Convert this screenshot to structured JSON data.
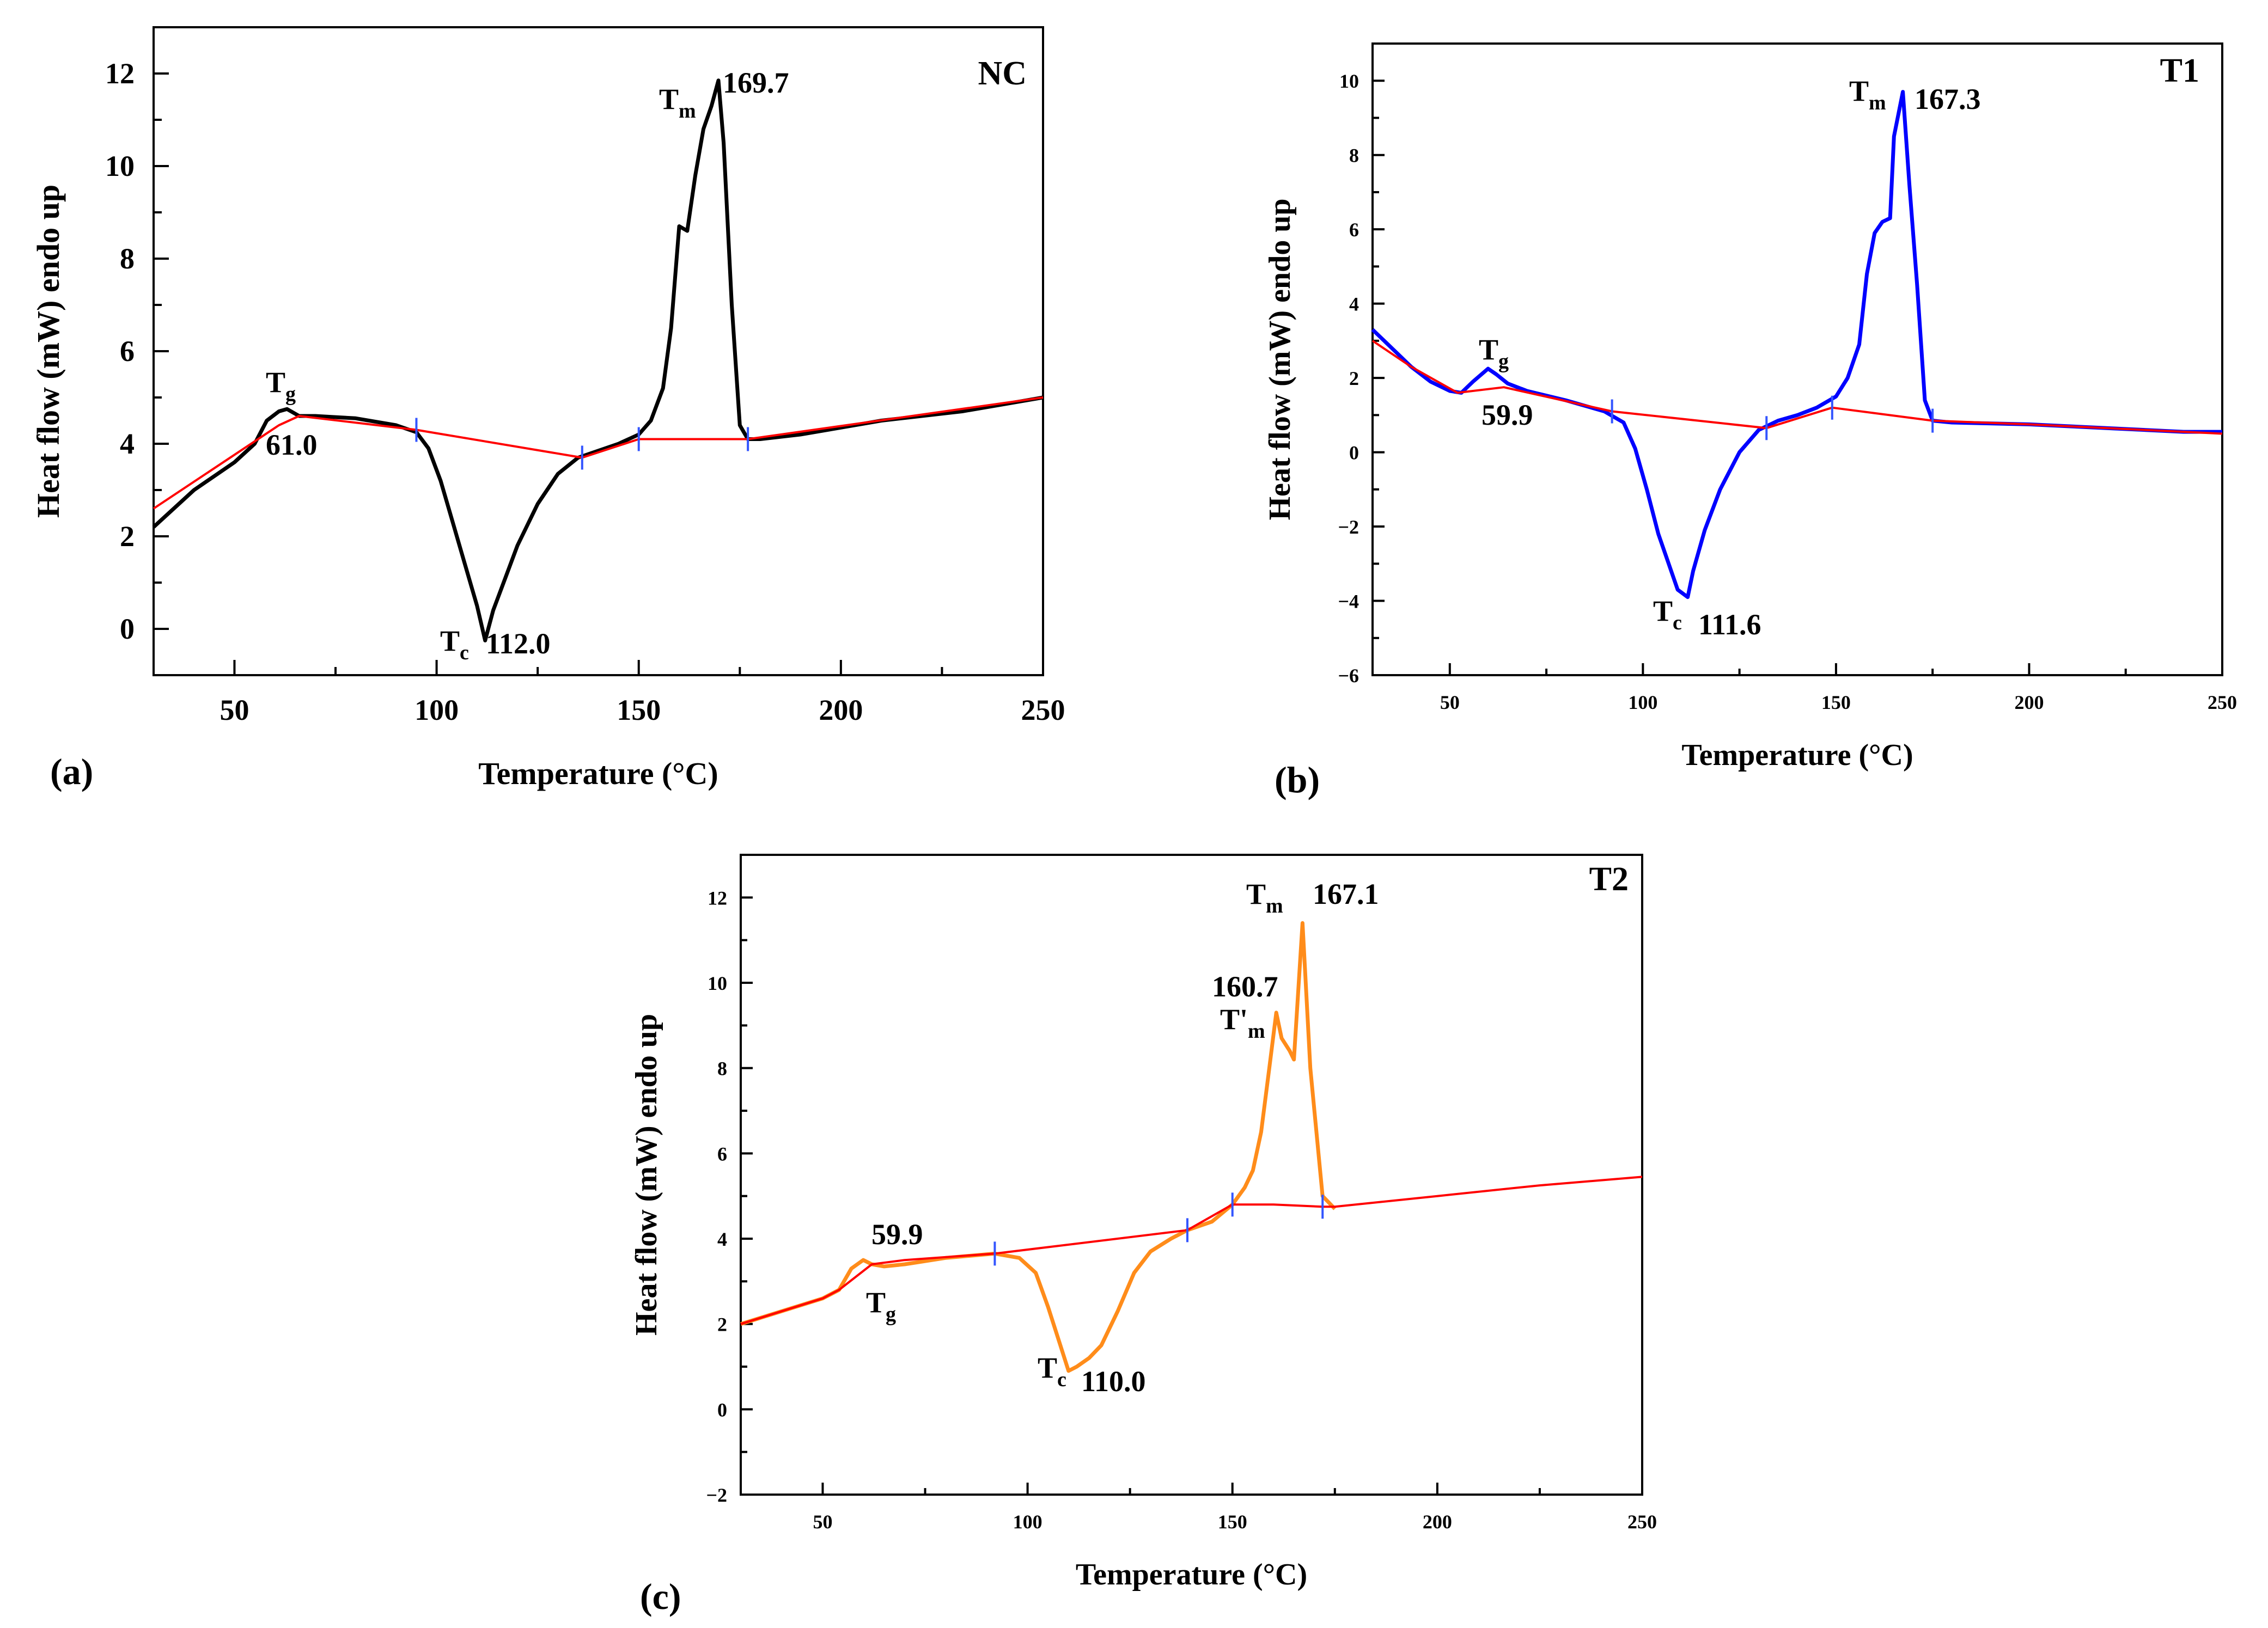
{
  "chart_data": [
    {
      "panel": "(a)",
      "type": "line",
      "title": "NC",
      "xlabel": "Temperature (°C)",
      "ylabel": "Heat flow (mW) endo up",
      "xlim": [
        30,
        250
      ],
      "ylim": [
        -1,
        13
      ],
      "xticks": [
        50,
        100,
        150,
        200,
        250
      ],
      "yticks": [
        0,
        2,
        4,
        6,
        8,
        10,
        12
      ],
      "series": [
        {
          "name": "NC",
          "color": "#000000",
          "x": [
            30,
            40,
            50,
            55,
            58,
            61,
            63,
            66,
            70,
            80,
            90,
            95,
            98,
            101,
            104,
            107,
            110,
            112,
            114,
            117,
            120,
            125,
            130,
            135,
            140,
            145,
            150,
            153,
            156,
            158,
            160,
            162,
            164,
            166,
            168,
            169.7,
            171,
            173,
            175,
            177,
            180,
            190,
            200,
            210,
            220,
            230,
            240,
            250
          ],
          "y": [
            2.2,
            3.0,
            3.6,
            4.0,
            4.5,
            4.7,
            4.75,
            4.6,
            4.6,
            4.55,
            4.4,
            4.25,
            3.9,
            3.2,
            2.3,
            1.4,
            0.5,
            -0.25,
            0.4,
            1.1,
            1.8,
            2.7,
            3.35,
            3.7,
            3.85,
            4.0,
            4.2,
            4.5,
            5.2,
            6.5,
            8.7,
            8.6,
            9.8,
            10.8,
            11.3,
            11.85,
            10.5,
            7.0,
            4.4,
            4.1,
            4.1,
            4.2,
            4.35,
            4.5,
            4.6,
            4.7,
            4.85,
            5.0
          ]
        },
        {
          "name": "baseline",
          "color": "#ff0000",
          "x": [
            30,
            61,
            66,
            95,
            136,
            150,
            177,
            250
          ],
          "y": [
            2.6,
            4.4,
            4.6,
            4.3,
            3.7,
            4.1,
            4.1,
            5.0
          ]
        }
      ],
      "tick_marks_x": [
        95,
        136,
        150,
        177
      ],
      "annotations": [
        {
          "label": "Tg",
          "value": "61.0"
        },
        {
          "label": "Tc",
          "value": "112.0"
        },
        {
          "label": "Tm",
          "value": "169.7"
        }
      ]
    },
    {
      "panel": "(b)",
      "type": "line",
      "title": "T1",
      "xlabel": "Temperature (°C)",
      "ylabel": "Heat flow (mW) endo up",
      "xlim": [
        30,
        250
      ],
      "ylim": [
        -6,
        11
      ],
      "xticks": [
        50,
        100,
        150,
        200,
        250
      ],
      "yticks": [
        -6,
        -4,
        -2,
        0,
        2,
        4,
        6,
        8,
        10
      ],
      "series": [
        {
          "name": "T1",
          "color": "#0000ff",
          "x": [
            30,
            35,
            40,
            45,
            50,
            53,
            56,
            59.9,
            62,
            65,
            70,
            80,
            90,
            95,
            98,
            101,
            104,
            107,
            109,
            111.6,
            113,
            116,
            120,
            125,
            130,
            135,
            140,
            145,
            150,
            153,
            156,
            158,
            160,
            162,
            164,
            165,
            167.3,
            169,
            171,
            173,
            175,
            180,
            200,
            220,
            240,
            250
          ],
          "y": [
            3.3,
            2.8,
            2.3,
            1.9,
            1.65,
            1.6,
            1.9,
            2.25,
            2.1,
            1.85,
            1.65,
            1.4,
            1.1,
            0.8,
            0.1,
            -1.0,
            -2.2,
            -3.1,
            -3.7,
            -3.9,
            -3.2,
            -2.1,
            -1.0,
            0.0,
            0.6,
            0.85,
            1.0,
            1.2,
            1.5,
            2.0,
            2.9,
            4.8,
            5.9,
            6.2,
            6.3,
            8.5,
            9.7,
            7.2,
            4.5,
            1.4,
            0.85,
            0.8,
            0.75,
            0.65,
            0.55,
            0.55
          ]
        },
        {
          "name": "baseline",
          "color": "#ff0000",
          "x": [
            30,
            40,
            52,
            64,
            92,
            132,
            149,
            175,
            200,
            250
          ],
          "y": [
            3.0,
            2.3,
            1.6,
            1.75,
            1.1,
            0.65,
            1.2,
            0.85,
            0.75,
            0.5
          ]
        }
      ],
      "tick_marks_x": [
        92,
        132,
        149,
        175
      ],
      "annotations": [
        {
          "label": "Tg",
          "value": "59.9"
        },
        {
          "label": "Tc",
          "value": "111.6"
        },
        {
          "label": "Tm",
          "value": "167.3"
        }
      ]
    },
    {
      "panel": "(c)",
      "type": "line",
      "title": "T2",
      "xlabel": "Temperature (°C)",
      "ylabel": "Heat flow (mW) endo up",
      "xlim": [
        30,
        250
      ],
      "ylim": [
        -2,
        13
      ],
      "xticks": [
        50,
        100,
        150,
        200,
        250
      ],
      "yticks": [
        -2,
        0,
        2,
        4,
        6,
        8,
        10,
        12
      ],
      "series": [
        {
          "name": "T2",
          "color": "#ff8c1a",
          "x": [
            30,
            40,
            50,
            54,
            57,
            59.9,
            62,
            65,
            70,
            80,
            92,
            98,
            102,
            105,
            108,
            110,
            112,
            115,
            118,
            122,
            126,
            130,
            135,
            139,
            145,
            150,
            153,
            155,
            157,
            159,
            160.7,
            162,
            164,
            165,
            167.1,
            169,
            170,
            172,
            175
          ],
          "y": [
            2.0,
            2.3,
            2.6,
            2.8,
            3.3,
            3.5,
            3.4,
            3.35,
            3.4,
            3.55,
            3.65,
            3.55,
            3.2,
            2.4,
            1.5,
            0.9,
            1.0,
            1.2,
            1.5,
            2.3,
            3.2,
            3.7,
            4.0,
            4.2,
            4.4,
            4.8,
            5.2,
            5.6,
            6.5,
            8.0,
            9.3,
            8.7,
            8.4,
            8.2,
            11.4,
            8.0,
            7.0,
            5.0,
            4.7
          ]
        },
        {
          "name": "baseline",
          "color": "#ff0000",
          "x": [
            30,
            40,
            50,
            54,
            62,
            70,
            92,
            139,
            150,
            160,
            172,
            175,
            200,
            225,
            250
          ],
          "y": [
            2.0,
            2.3,
            2.6,
            2.8,
            3.4,
            3.5,
            3.65,
            4.2,
            4.8,
            4.8,
            4.75,
            4.75,
            5.0,
            5.25,
            5.45
          ]
        }
      ],
      "tick_marks_x": [
        92,
        139,
        150,
        172
      ],
      "annotations": [
        {
          "label": "Tg",
          "value": "59.9"
        },
        {
          "label": "Tc",
          "value": "110.0"
        },
        {
          "label": "T'm",
          "value": "160.7"
        },
        {
          "label": "Tm",
          "value": "167.1"
        }
      ]
    }
  ]
}
